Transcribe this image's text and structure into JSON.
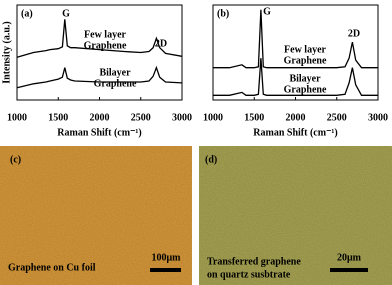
{
  "chart_data": [
    {
      "type": "line",
      "panel_label": "(a)",
      "xlabel": "Raman Shift (cm⁻¹)",
      "ylabel": "Intensity (a.u.)",
      "xlim": [
        1000,
        3000
      ],
      "xticks": [
        1000,
        1500,
        2000,
        2500,
        3000
      ],
      "ylim": [
        0,
        10
      ],
      "peak_labels": [
        "G",
        "2D"
      ],
      "x": [
        1000,
        1200,
        1350,
        1400,
        1500,
        1550,
        1580,
        1610,
        1650,
        1700,
        2000,
        2300,
        2500,
        2600,
        2650,
        2690,
        2730,
        2800,
        3000
      ],
      "series": [
        {
          "label": [
            "Few layer",
            "Graphene"
          ],
          "color": "#000000",
          "values": [
            4.5,
            5.0,
            5.2,
            5.3,
            5.4,
            5.6,
            8.5,
            5.7,
            5.5,
            5.5,
            5.3,
            5.1,
            5.0,
            5.1,
            5.5,
            6.5,
            5.5,
            4.9,
            4.6
          ]
        },
        {
          "label": [
            "Bilayer",
            "Graphene"
          ],
          "color": "#000000",
          "values": [
            1.3,
            1.7,
            1.9,
            2.0,
            2.2,
            2.4,
            3.4,
            2.3,
            2.1,
            2.0,
            1.9,
            1.9,
            1.9,
            2.0,
            2.5,
            3.4,
            2.4,
            1.9,
            1.8
          ]
        }
      ]
    },
    {
      "type": "line",
      "panel_label": "(b)",
      "xlabel": "Raman Shift (cm⁻¹)",
      "xlim": [
        1000,
        3000
      ],
      "xticks": [
        1000,
        1500,
        2000,
        2500,
        3000
      ],
      "ylim": [
        0,
        10
      ],
      "peak_labels": [
        "G",
        "2D"
      ],
      "x": [
        1000,
        1200,
        1350,
        1400,
        1500,
        1550,
        1580,
        1610,
        1650,
        1700,
        2000,
        2300,
        2500,
        2600,
        2650,
        2690,
        2730,
        2800,
        3000
      ],
      "series": [
        {
          "label": [
            "Few layer",
            "Graphene"
          ],
          "color": "#000000",
          "values": [
            3.4,
            3.4,
            3.7,
            3.4,
            3.4,
            3.5,
            9.5,
            3.5,
            3.4,
            3.4,
            3.4,
            3.4,
            3.4,
            3.5,
            4.4,
            6.1,
            4.2,
            3.4,
            3.4
          ]
        },
        {
          "label": [
            "Bilayer",
            "Graphene"
          ],
          "color": "#000000",
          "values": [
            0.5,
            0.5,
            0.8,
            0.5,
            0.5,
            0.6,
            4.4,
            0.6,
            0.5,
            0.5,
            0.5,
            0.5,
            0.5,
            0.6,
            1.8,
            3.4,
            1.6,
            0.5,
            0.5
          ]
        }
      ]
    }
  ],
  "images": [
    {
      "panel_label": "(c)",
      "caption": [
        "Graphene on Cu foil"
      ],
      "scale_bar": "100μm",
      "color": "#d99a3a"
    },
    {
      "panel_label": "(d)",
      "caption": [
        "Transferred graphene",
        "on quartz susbtrate"
      ],
      "scale_bar": "20μm",
      "color": "#a9a553"
    }
  ]
}
